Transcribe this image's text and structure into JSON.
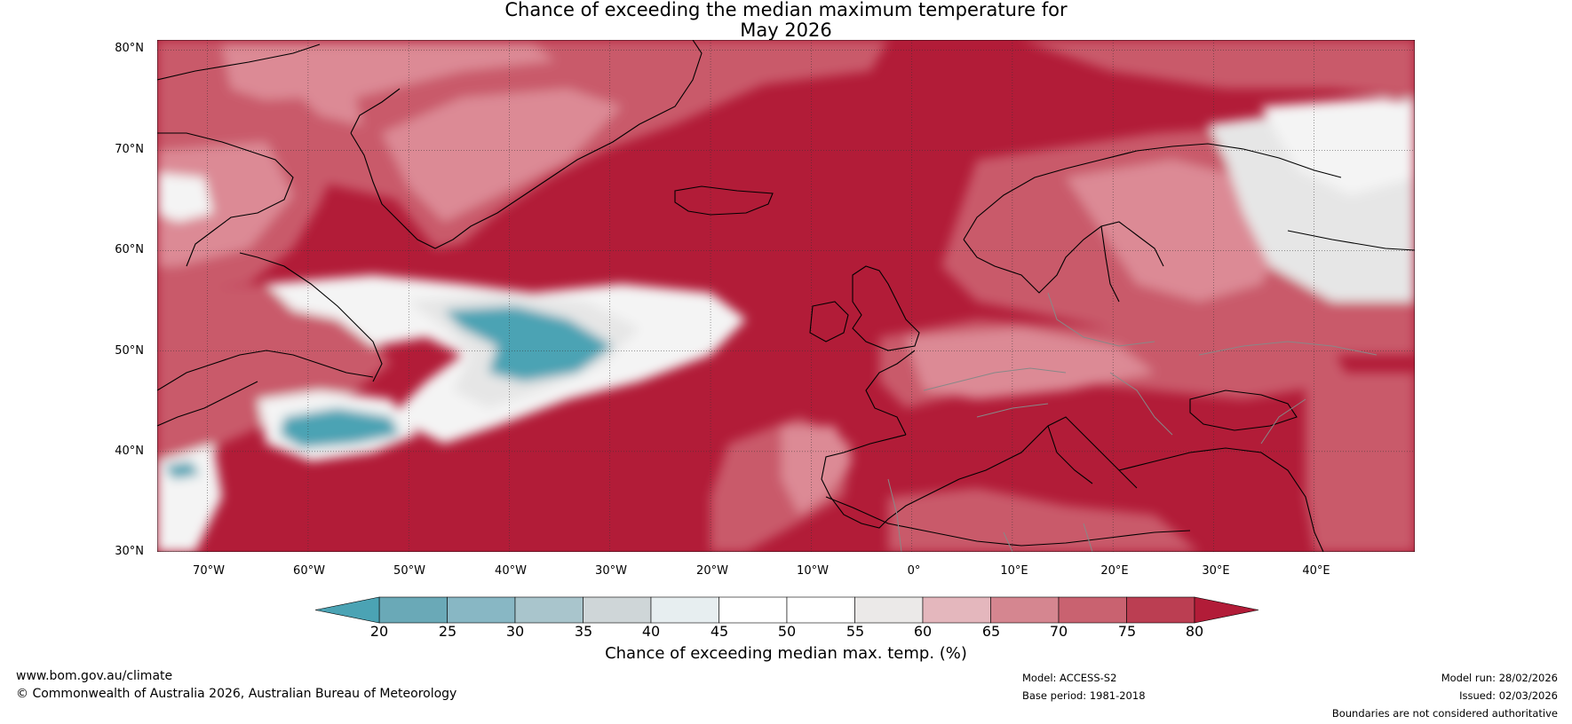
{
  "title": {
    "line1": "Chance of exceeding the median maximum temperature for",
    "line2": "May 2026"
  },
  "map": {
    "extent": {
      "lon": [
        -75,
        50
      ],
      "lat": [
        30,
        81
      ]
    },
    "lat_ticks": [
      "80°N",
      "70°N",
      "60°N",
      "50°N",
      "40°N",
      "30°N"
    ],
    "lon_ticks": [
      "70°W",
      "60°W",
      "50°W",
      "40°W",
      "30°W",
      "20°W",
      "10°W",
      "0°",
      "10°E",
      "20°E",
      "30°E",
      "40°E"
    ],
    "colors": {
      "ocean_high": "#b21c38",
      "land_mid": "#c95a6a",
      "pink": "#dc8a95",
      "light_pink": "#e8b4bb",
      "white": "#f4f4f4",
      "teal": "#4ba3b4",
      "grey": "#e6e6e6"
    }
  },
  "colorbar": {
    "ticks": [
      "20",
      "25",
      "30",
      "35",
      "40",
      "45",
      "50",
      "55",
      "60",
      "65",
      "70",
      "75",
      "80"
    ],
    "colors": [
      "#6aa9b7",
      "#88b7c4",
      "#a9c5cc",
      "#cfd6d8",
      "#e7eef0",
      "#ffffff",
      "#ffffff",
      "#ebe9e8",
      "#e4b7bd",
      "#d58690",
      "#c96270",
      "#bb3e52"
    ],
    "under_color": "#4ba3b4",
    "over_color": "#b21c38",
    "label": "Chance of exceeding median max. temp. (%)"
  },
  "footer": {
    "website": "www.bom.gov.au/climate",
    "copyright": "© Commonwealth of Australia 2026, Australian Bureau of Meteorology",
    "model": "Model: ACCESS-S2",
    "base_period": "Base period: 1981-2018",
    "model_run": "Model run: 28/02/2026",
    "issued": "Issued: 02/03/2026",
    "disclaimer": "Boundaries are not considered authoritative"
  }
}
